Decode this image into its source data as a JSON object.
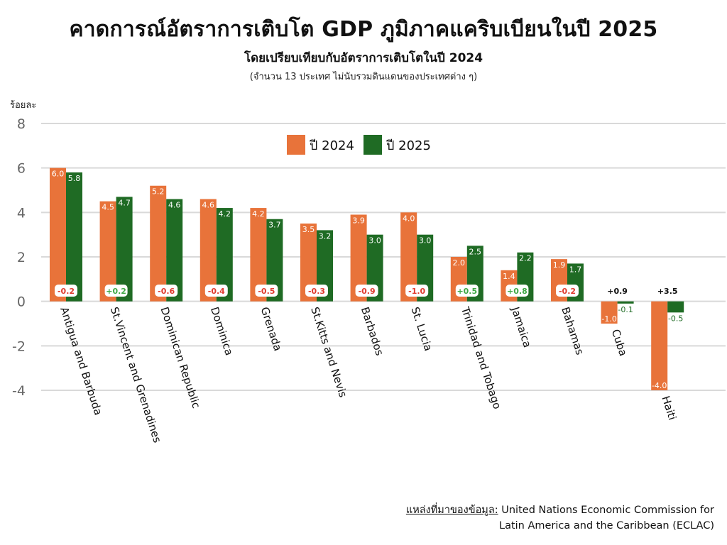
{
  "header": {
    "title": "คาดการณ์อัตราการเติบโต GDP ภูมิภาคแคริบเบียนในปี 2025",
    "subtitle": "โดยเปรียบเทียบกับอัตราการเติบโตในปี 2024",
    "note": "(จำนวน 13 ประเทศ ไม่นับรวมดินแดนของประเทศต่าง ๆ)"
  },
  "source": {
    "label": "แหล่งที่มาของข้อมูล:",
    "line1": "United Nations Economic Commission for",
    "line2": "Latin America and the Caribbean (ECLAC)"
  },
  "colors": {
    "series_2024": "#E8733A",
    "series_2025": "#1F6B24",
    "positive_change": "#3FA845",
    "negative_change": "#E03B2E",
    "grid": "#D9D9D9",
    "axis_text": "#666666"
  },
  "chart_data": {
    "type": "bar",
    "ylabel": "ร้อยละ",
    "ylim": [
      -4,
      8
    ],
    "yticks": [
      "8",
      "6",
      "4",
      "2",
      "0",
      "-2",
      "-4"
    ],
    "grid": true,
    "legend_position": "top-center",
    "categories": [
      "Antigua and Barbuda",
      "St.Vincent and Grenadines",
      "Dominican Republic",
      "Dominica",
      "Grenada",
      "St.Kitts and Nevis",
      "Barbados",
      "St. Lucia",
      "Trinidad and Tobago",
      "Jamaica",
      "Bahamas",
      "Cuba",
      "Haiti"
    ],
    "series": [
      {
        "name": "ปี 2024",
        "values": [
          6.0,
          4.5,
          5.2,
          4.6,
          4.2,
          3.5,
          3.9,
          4.0,
          2.0,
          1.4,
          1.9,
          -1.0,
          -4.0
        ],
        "labels": [
          "6.0",
          "4.5",
          "5.2",
          "4.6",
          "4.2",
          "3.5",
          "3.9",
          "4.0",
          "2.0",
          "1.4",
          "1.9",
          "-1.0",
          "-4.0"
        ]
      },
      {
        "name": "ปี 2025",
        "values": [
          5.8,
          4.7,
          4.6,
          4.2,
          3.7,
          3.2,
          3.0,
          3.0,
          2.5,
          2.2,
          1.7,
          -0.1,
          -0.5
        ],
        "labels": [
          "5.8",
          "4.7",
          "4.6",
          "4.2",
          "3.7",
          "3.2",
          "3.0",
          "3.0",
          "2.5",
          "2.2",
          "1.7",
          "-0.1",
          "-0.5"
        ]
      }
    ],
    "change": [
      "-0.2",
      "+0.2",
      "-0.6",
      "-0.4",
      "-0.5",
      "-0.3",
      "-0.9",
      "-1.0",
      "+0.5",
      "+0.8",
      "-0.2",
      "+0.9",
      "+3.5"
    ]
  }
}
